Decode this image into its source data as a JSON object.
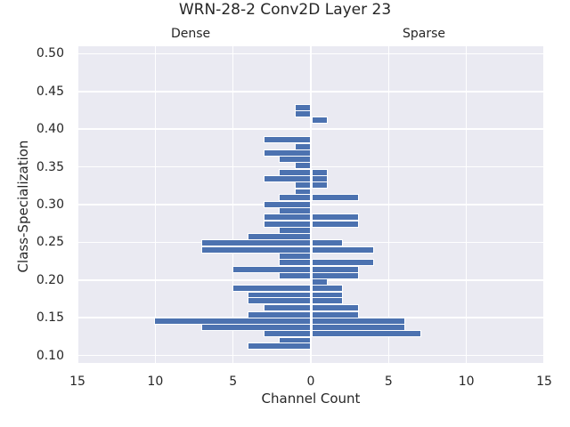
{
  "chart_data": {
    "type": "bar",
    "orientation": "horizontal",
    "title": "WRN-28-2 Conv2D Layer 23",
    "subtitles": {
      "left": "Dense",
      "right": "Sparse"
    },
    "xlabel": "Channel Count",
    "ylabel": "Class-Specialization",
    "xlim": [
      -15,
      15
    ],
    "ylim": [
      0.09,
      0.51
    ],
    "xticks": [
      "15",
      "10",
      "5",
      "0",
      "5",
      "10",
      "15"
    ],
    "xtick_values": [
      -15,
      -10,
      -5,
      0,
      5,
      10,
      15
    ],
    "yticks": [
      "0.50",
      "0.45",
      "0.40",
      "0.35",
      "0.30",
      "0.25",
      "0.20",
      "0.15",
      "0.10"
    ],
    "ytick_values": [
      0.5,
      0.45,
      0.4,
      0.35,
      0.3,
      0.25,
      0.2,
      0.15,
      0.1
    ],
    "grid": true,
    "bar_color": "#4c72b0",
    "background": "#eaeaf2",
    "categories": [
      0.429,
      0.42,
      0.412,
      0.403,
      0.394,
      0.386,
      0.377,
      0.369,
      0.36,
      0.352,
      0.343,
      0.334,
      0.326,
      0.317,
      0.309,
      0.3,
      0.292,
      0.283,
      0.274,
      0.266,
      0.257,
      0.249,
      0.24,
      0.232,
      0.223,
      0.214,
      0.206,
      0.197,
      0.189,
      0.18,
      0.172,
      0.163,
      0.154,
      0.146,
      0.137,
      0.129,
      0.12,
      0.112
    ],
    "series": [
      {
        "name": "Dense",
        "direction": "left",
        "values": [
          1,
          1,
          0,
          0,
          0,
          3,
          1,
          3,
          2,
          1,
          2,
          3,
          1,
          1,
          2,
          3,
          2,
          3,
          3,
          2,
          4,
          7,
          7,
          2,
          2,
          5,
          2,
          0,
          5,
          4,
          4,
          3,
          4,
          10,
          7,
          3,
          2,
          4
        ]
      },
      {
        "name": "Sparse",
        "direction": "right",
        "values": [
          0,
          0,
          1,
          0,
          0,
          0,
          0,
          0,
          0,
          0,
          1,
          1,
          1,
          0,
          3,
          0,
          0,
          3,
          3,
          0,
          0,
          2,
          4,
          0,
          4,
          3,
          3,
          1,
          2,
          2,
          2,
          3,
          3,
          6,
          6,
          7,
          0,
          0
        ]
      }
    ]
  }
}
